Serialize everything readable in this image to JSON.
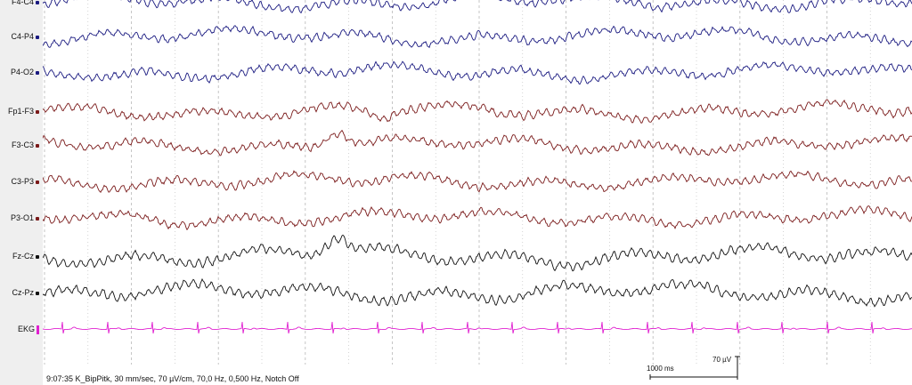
{
  "channels": [
    {
      "label": "F4-C4",
      "color": "#1a1a80"
    },
    {
      "label": "C4-P4",
      "color": "#1a1a80"
    },
    {
      "label": "P4-O2",
      "color": "#1a1a80"
    },
    {
      "label": "Fp1-F3",
      "color": "#7a1a1a"
    },
    {
      "label": "F3-C3",
      "color": "#7a1a1a"
    },
    {
      "label": "C3-P3",
      "color": "#7a1a1a"
    },
    {
      "label": "P3-O1",
      "color": "#7a1a1a"
    },
    {
      "label": "Fz-Cz",
      "color": "#111111"
    },
    {
      "label": "Cz-Pz",
      "color": "#111111"
    },
    {
      "label": "EKG",
      "color": "#e020d0"
    }
  ],
  "status_text": "9:07:35 K_BipPitk, 30 mm/sec, 70 µV/cm, 70,0 Hz, 0,500 Hz, Notch Off",
  "scale": {
    "time_label": "1000 ms",
    "amplitude_label": "70 µV"
  },
  "colors": {
    "label_panel": "#efefef",
    "grid": "#b8b8b8"
  }
}
